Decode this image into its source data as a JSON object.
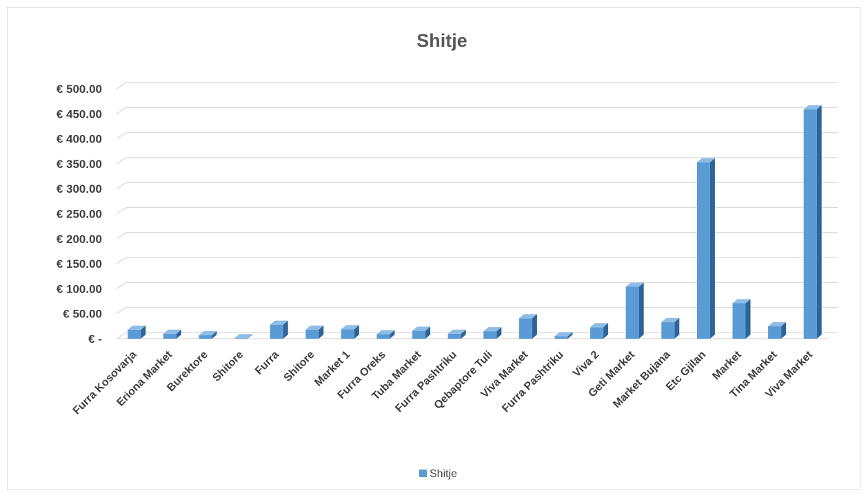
{
  "chart_data": {
    "type": "bar",
    "style": "3d-column",
    "title": "Shitje",
    "xlabel": "",
    "ylabel": "",
    "ylim": [
      0,
      500
    ],
    "y_ticks": [
      0,
      50,
      100,
      150,
      200,
      250,
      300,
      350,
      400,
      450,
      500
    ],
    "y_tick_labels": [
      "€ -",
      "€ 50.00",
      "€ 100.00",
      "€ 150.00",
      "€ 200.00",
      "€ 250.00",
      "€ 300.00",
      "€ 350.00",
      "€ 400.00",
      "€ 450.00",
      "€ 500.00"
    ],
    "categories": [
      "Furra Kosovarja",
      "Eriona Market",
      "Burektore",
      "Shitore",
      "Furra",
      "Shitore",
      "Market 1",
      "Furra Oreks",
      "Tuba Market",
      "Furra Pashtriku",
      "Qebaptore Tuli",
      "Viva Market",
      "Furra Pashtriku",
      "Viva 2",
      "Geti Market",
      "Market Bujana",
      "Etc Gjilan",
      "Market",
      "Tina Market",
      "Viva Market"
    ],
    "series": [
      {
        "name": "Shitje",
        "color": "#5b9bd5",
        "values": [
          18,
          10,
          7,
          1,
          28,
          18,
          19,
          9,
          16,
          10,
          15,
          41,
          5,
          23,
          104,
          33,
          353,
          71,
          25,
          459
        ]
      }
    ],
    "grid": true,
    "legend": "bottom"
  }
}
